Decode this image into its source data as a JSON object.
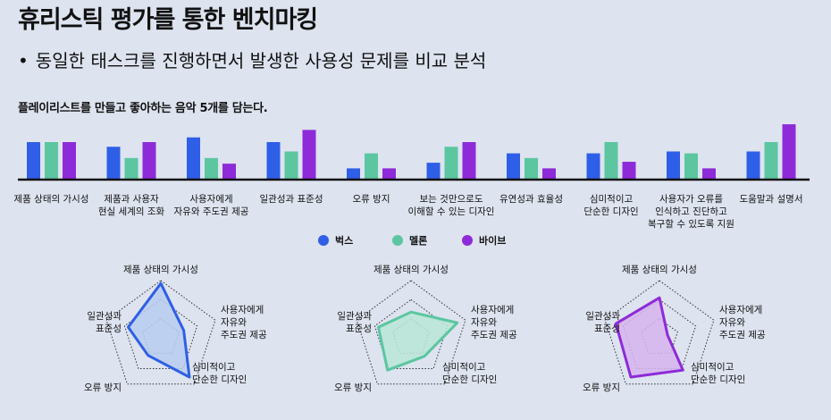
{
  "title": "휴리스틱 평가를 통한 벤치마킹",
  "bullet": "동일한 태스크를 진행하면서 발생한 사용성 문제를 비교 분석",
  "task": "플레이리스트를 만들고 좋아하는 음악 5개를 담는다.",
  "colors": {
    "box": "#2f5fe6",
    "melon": "#5bc6a0",
    "vibe": "#8e2bd8",
    "axis": "#111111"
  },
  "chart_data": [
    {
      "type": "bar",
      "categories": [
        [
          "제품 상태의 가시성"
        ],
        [
          "제품과 사용자",
          "현실 세계의 조화"
        ],
        [
          "사용자에게",
          "자유와 주도권 제공"
        ],
        [
          "일관성과 표준성"
        ],
        [
          "오류 방지"
        ],
        [
          "보는 것만으로도",
          "이해할 수 있는 디자인"
        ],
        [
          "유연성과 효율성"
        ],
        [
          "심미적이고",
          "단순한 디자인"
        ],
        [
          "사용자가 오류를",
          "인식하고 진단하고",
          "복구할 수 있도록 지원"
        ],
        [
          "도움말과 설명서"
        ]
      ],
      "series": [
        {
          "name": "벅스",
          "color": "#2f5fe6",
          "values": [
            4,
            3.5,
            4.5,
            4,
            1.2,
            1.8,
            2.8,
            2.8,
            3,
            3
          ]
        },
        {
          "name": "멜론",
          "color": "#5bc6a0",
          "values": [
            4,
            2.3,
            2.3,
            3,
            2.8,
            3.5,
            2.3,
            4,
            2.8,
            4
          ]
        },
        {
          "name": "바이브",
          "color": "#8e2bd8",
          "values": [
            4,
            4,
            1.7,
            5.3,
            1.2,
            4,
            1.2,
            1.9,
            1.2,
            5.9
          ]
        }
      ],
      "ylim": [
        0,
        6
      ]
    },
    {
      "type": "radar",
      "axes": [
        [
          "제품 상태의 가시성"
        ],
        [
          "사용자에게",
          "자유와",
          "주도권 제공"
        ],
        [
          "심미적이고",
          "단순한 디자인"
        ],
        [
          "오류 방지"
        ],
        [
          "일관성과",
          "표준성"
        ]
      ],
      "rings": 3,
      "max": 1,
      "series": [
        {
          "name": "벅스",
          "color": "#2f5fe6",
          "fill": "#b9cdf0",
          "values": [
            0.95,
            0.42,
            0.85,
            0.38,
            0.6
          ]
        },
        {
          "name": "멜론",
          "color": "#5bc6a0",
          "fill": "#b8e6d6",
          "values": [
            0.45,
            0.85,
            0.4,
            0.7,
            0.6
          ]
        },
        {
          "name": "바이브",
          "color": "#8e2bd8",
          "fill": "#d6b4ef",
          "values": [
            0.7,
            0.15,
            0.7,
            0.85,
            0.8
          ]
        }
      ]
    }
  ]
}
